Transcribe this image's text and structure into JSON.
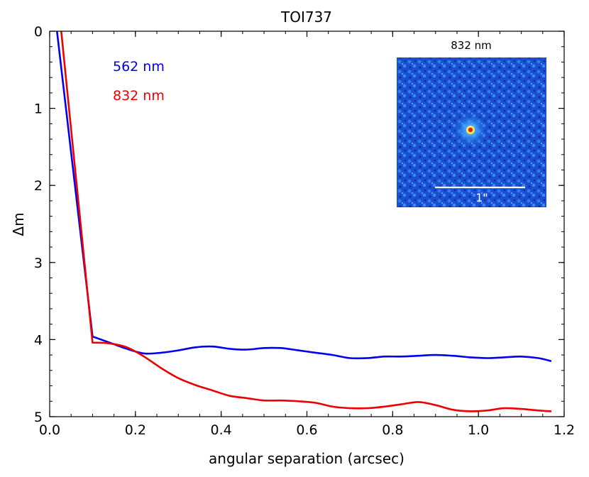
{
  "chart_data": {
    "type": "line",
    "title": "TOI737",
    "xlabel": "angular separation (arcsec)",
    "ylabel": "Δm",
    "xlim": [
      0.0,
      1.2
    ],
    "ylim": [
      5,
      0
    ],
    "y_inverted": true,
    "x_ticks": [
      0.0,
      0.2,
      0.4,
      0.6,
      0.8,
      1.0,
      1.2
    ],
    "x_tick_labels": [
      "0.0",
      "0.2",
      "0.4",
      "0.6",
      "0.8",
      "1.0",
      "1.2"
    ],
    "y_ticks": [
      0,
      1,
      2,
      3,
      4,
      5
    ],
    "y_tick_labels": [
      "0",
      "1",
      "2",
      "3",
      "4",
      "5"
    ],
    "grid": false,
    "series": [
      {
        "name": "562 nm",
        "color": "#0000ee",
        "x": [
          0.017,
          0.1,
          0.14,
          0.18,
          0.22,
          0.26,
          0.3,
          0.34,
          0.38,
          0.42,
          0.46,
          0.5,
          0.54,
          0.58,
          0.62,
          0.66,
          0.7,
          0.74,
          0.78,
          0.82,
          0.86,
          0.9,
          0.94,
          0.98,
          1.02,
          1.06,
          1.1,
          1.14,
          1.17
        ],
        "y": [
          0.0,
          3.96,
          4.04,
          4.12,
          4.18,
          4.17,
          4.14,
          4.1,
          4.09,
          4.12,
          4.13,
          4.11,
          4.11,
          4.14,
          4.17,
          4.2,
          4.24,
          4.24,
          4.22,
          4.22,
          4.21,
          4.2,
          4.21,
          4.23,
          4.24,
          4.23,
          4.22,
          4.24,
          4.28
        ]
      },
      {
        "name": "832 nm",
        "color": "#ee0000",
        "x": [
          0.027,
          0.1,
          0.14,
          0.18,
          0.22,
          0.26,
          0.3,
          0.34,
          0.38,
          0.42,
          0.46,
          0.5,
          0.54,
          0.58,
          0.62,
          0.66,
          0.7,
          0.74,
          0.78,
          0.82,
          0.86,
          0.9,
          0.94,
          0.98,
          1.02,
          1.06,
          1.1,
          1.14,
          1.17
        ],
        "y": [
          0.0,
          4.04,
          4.05,
          4.1,
          4.22,
          4.37,
          4.5,
          4.59,
          4.66,
          4.73,
          4.76,
          4.79,
          4.79,
          4.8,
          4.82,
          4.87,
          4.89,
          4.89,
          4.87,
          4.84,
          4.81,
          4.85,
          4.91,
          4.93,
          4.92,
          4.89,
          4.9,
          4.92,
          4.93
        ]
      }
    ],
    "inset": {
      "label": "832 nm",
      "scale_bar_label": "1\"",
      "background_color": "#1a4fd0",
      "star_color": "#e02020"
    }
  }
}
